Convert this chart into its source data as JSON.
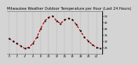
{
  "title": "Milwaukee Weather Outdoor Temperature per Hour (Last 24 Hours)",
  "hours": [
    0,
    1,
    2,
    3,
    4,
    5,
    6,
    7,
    8,
    9,
    10,
    11,
    12,
    13,
    14,
    15,
    16,
    17,
    18,
    19,
    20,
    21,
    22,
    23
  ],
  "temps": [
    32,
    30,
    28,
    26,
    24,
    25,
    28,
    33,
    40,
    46,
    49,
    50,
    46,
    44,
    47,
    48,
    47,
    43,
    38,
    33,
    30,
    27,
    25,
    24
  ],
  "line_color": "#cc0000",
  "marker_color": "#111111",
  "bg_color": "#d4d4d4",
  "plot_bg": "#d4d4d4",
  "grid_color": "#999999",
  "title_color": "#000000",
  "ylim": [
    20,
    54
  ],
  "yticks": [
    25,
    30,
    35,
    40,
    45,
    50
  ],
  "title_fontsize": 3.8,
  "tick_fontsize": 3.0,
  "line_width": 1.0,
  "marker_size": 1.6
}
